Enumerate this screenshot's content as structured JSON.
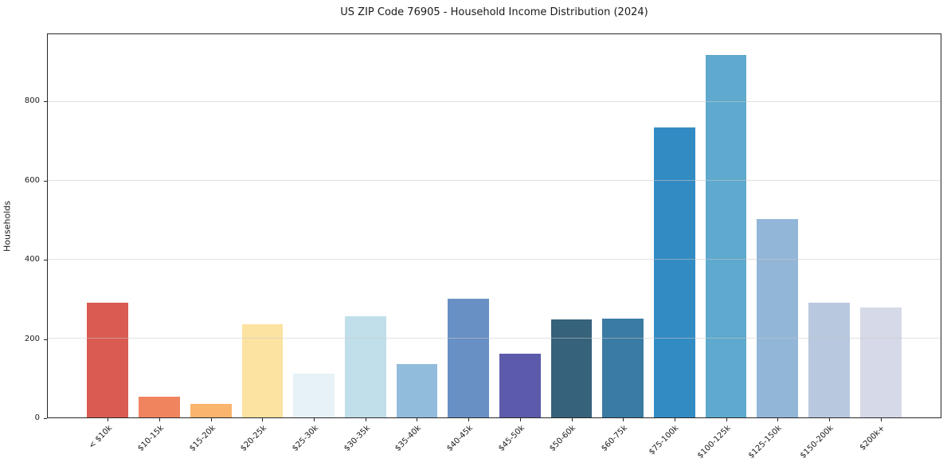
{
  "chart_data": {
    "type": "bar",
    "title": "US ZIP Code 76905 - Household Income Distribution (2024)",
    "xlabel": "",
    "ylabel": "Households",
    "categories": [
      "< $10k",
      "$10-15k",
      "$15-20k",
      "$20-25k",
      "$25-30k",
      "$30-35k",
      "$35-40k",
      "$40-45k",
      "$45-50k",
      "$50-60k",
      "$60-75k",
      "$75-100k",
      "$100-125k",
      "$125-150k",
      "$150-200k",
      "$200k+"
    ],
    "values": [
      292,
      52,
      35,
      237,
      112,
      256,
      136,
      301,
      161,
      249,
      251,
      735,
      919,
      504,
      291,
      278
    ],
    "bar_colors": [
      "#d95b52",
      "#f0845f",
      "#f9b46e",
      "#fce3a1",
      "#e7f2f7",
      "#c0dfea",
      "#92bcdc",
      "#6890c4",
      "#5c5bab",
      "#36627b",
      "#3a7ba3",
      "#338bc4",
      "#5ea9cd",
      "#92b6d8",
      "#b8c8df",
      "#d6d9e7"
    ],
    "yticks": [
      0,
      200,
      400,
      600,
      800
    ],
    "ylim": [
      0,
      972
    ],
    "grid": "horizontal-light",
    "legend": "none"
  }
}
